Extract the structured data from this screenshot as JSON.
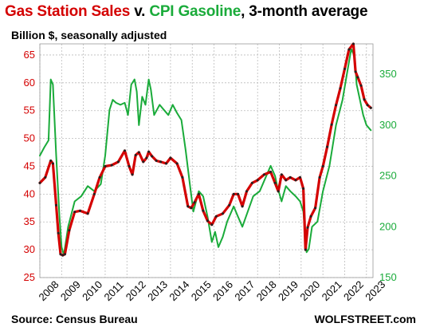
{
  "header": {
    "title_part1": "Gas Station Sales",
    "title_part2": " v. ",
    "title_part3": "CPI Gasoline",
    "title_part4": ", 3-month average",
    "subtitle": "Billion $, seasonally adjusted"
  },
  "footer": {
    "source": "Source: Census Bureau",
    "brand": "WOLFSTREET.com"
  },
  "colors": {
    "sales": "#d40000",
    "sales_markers": "#222222",
    "cpi": "#1aab3a",
    "axis_left": "#d40000",
    "axis_right": "#1aab3a",
    "grid": "#bbbbbb"
  },
  "chart_data": {
    "type": "line",
    "x_label": "",
    "grid": true,
    "x_ticks": [
      "2008",
      "2009",
      "2010",
      "2011",
      "2012",
      "2013",
      "2014",
      "2015",
      "2016",
      "2017",
      "2018",
      "2019",
      "2020",
      "2021",
      "2022",
      "2023"
    ],
    "y_left": {
      "ylim": [
        25,
        67
      ],
      "ticks": [
        "25",
        "30",
        "35",
        "40",
        "45",
        "50",
        "55",
        "60",
        "65"
      ]
    },
    "y_right": {
      "ylim": [
        150,
        380
      ],
      "ticks": [
        "150",
        "200",
        "250",
        "300",
        "350"
      ]
    },
    "series": [
      {
        "name": "Gas Station Sales",
        "axis": "left",
        "x": [
          2008.0,
          2008.25,
          2008.5,
          2008.6,
          2008.75,
          2008.85,
          2008.95,
          2009.05,
          2009.15,
          2009.35,
          2009.6,
          2009.85,
          2010.2,
          2010.5,
          2010.75,
          2011.0,
          2011.3,
          2011.6,
          2011.9,
          2012.1,
          2012.25,
          2012.4,
          2012.55,
          2012.75,
          2012.9,
          2013.0,
          2013.15,
          2013.35,
          2013.55,
          2013.8,
          2014.0,
          2014.3,
          2014.55,
          2014.8,
          2014.95,
          2015.1,
          2015.3,
          2015.5,
          2015.7,
          2015.9,
          2016.1,
          2016.4,
          2016.7,
          2016.9,
          2017.1,
          2017.3,
          2017.5,
          2017.75,
          2018.0,
          2018.3,
          2018.6,
          2018.8,
          2018.95,
          2019.1,
          2019.3,
          2019.5,
          2019.75,
          2019.95,
          2020.1,
          2020.2,
          2020.3,
          2020.45,
          2020.65,
          2020.85,
          2021.0,
          2021.2,
          2021.4,
          2021.6,
          2021.8,
          2022.0,
          2022.2,
          2022.4,
          2022.5,
          2022.6,
          2022.75,
          2022.9,
          2023.05,
          2023.2
        ],
        "values": [
          42,
          43,
          46,
          45.5,
          38,
          33,
          29.2,
          29,
          29.2,
          33.5,
          36.8,
          37,
          36.5,
          40,
          43,
          45,
          45.2,
          45.8,
          47.8,
          45,
          43.5,
          47,
          47.5,
          45.8,
          46.5,
          47.6,
          46.8,
          46,
          45.8,
          45.5,
          46.5,
          45.5,
          43,
          37.8,
          37.5,
          38.5,
          40,
          37,
          35.2,
          34.5,
          36,
          36.5,
          38,
          40,
          40,
          37.8,
          40.5,
          42,
          42.5,
          43.5,
          44,
          42,
          40.5,
          43.5,
          42.5,
          43,
          42.5,
          43,
          41,
          30,
          34,
          36,
          37.5,
          43,
          45,
          48.5,
          52.5,
          56,
          59,
          62.5,
          66,
          67,
          62,
          61,
          59.5,
          57,
          56,
          55.5
        ]
      },
      {
        "name": "CPI Gasoline",
        "axis": "right",
        "x": [
          2008.0,
          2008.2,
          2008.4,
          2008.5,
          2008.6,
          2008.75,
          2008.9,
          2009.0,
          2009.1,
          2009.3,
          2009.6,
          2009.9,
          2010.2,
          2010.5,
          2010.8,
          2011.0,
          2011.2,
          2011.35,
          2011.5,
          2011.7,
          2011.9,
          2012.05,
          2012.2,
          2012.35,
          2012.45,
          2012.55,
          2012.7,
          2012.85,
          2013.0,
          2013.1,
          2013.25,
          2013.5,
          2013.7,
          2013.9,
          2014.1,
          2014.3,
          2014.5,
          2014.7,
          2014.9,
          2015.05,
          2015.3,
          2015.5,
          2015.7,
          2015.9,
          2016.05,
          2016.2,
          2016.4,
          2016.6,
          2016.9,
          2017.1,
          2017.3,
          2017.55,
          2017.8,
          2018.1,
          2018.4,
          2018.6,
          2018.8,
          2018.9,
          2019.1,
          2019.3,
          2019.5,
          2019.75,
          2019.95,
          2020.1,
          2020.25,
          2020.35,
          2020.5,
          2020.75,
          2021.0,
          2021.3,
          2021.6,
          2021.9,
          2022.1,
          2022.3,
          2022.45,
          2022.55,
          2022.7,
          2022.85,
          2023.0,
          2023.2
        ],
        "values": [
          270,
          278,
          285,
          345,
          340,
          270,
          210,
          180,
          172,
          200,
          225,
          230,
          240,
          235,
          242,
          270,
          315,
          325,
          322,
          320,
          322,
          310,
          340,
          345,
          333,
          300,
          328,
          320,
          345,
          335,
          310,
          320,
          315,
          310,
          320,
          312,
          305,
          275,
          240,
          215,
          235,
          230,
          210,
          185,
          195,
          180,
          190,
          205,
          220,
          210,
          200,
          215,
          230,
          235,
          250,
          260,
          250,
          240,
          225,
          240,
          235,
          230,
          225,
          215,
          175,
          178,
          200,
          205,
          235,
          260,
          300,
          325,
          350,
          375,
          368,
          340,
          325,
          310,
          300,
          295
        ]
      }
    ]
  }
}
